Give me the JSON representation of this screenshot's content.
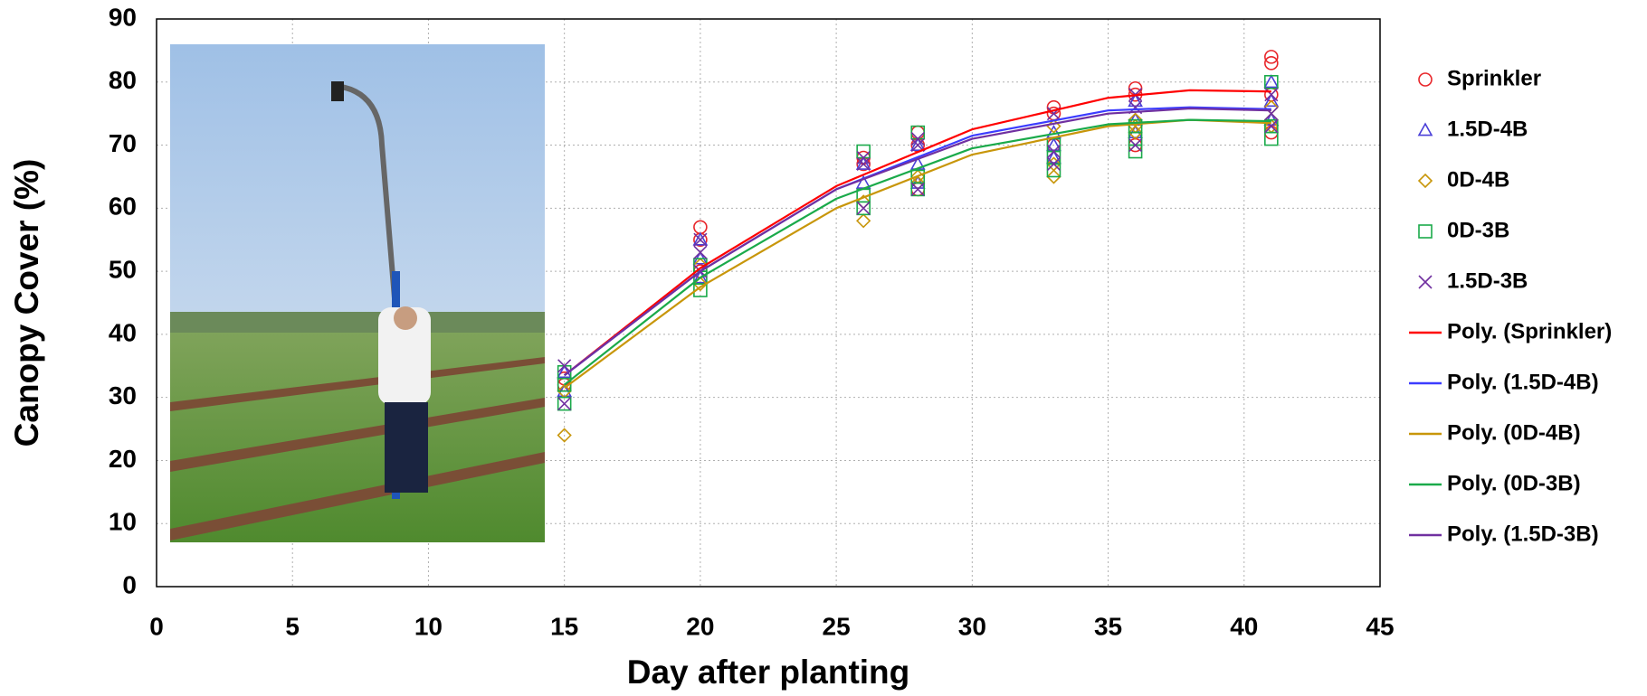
{
  "chart_data": {
    "type": "scatter",
    "xlabel": "Day after planting",
    "ylabel": "Canopy Cover (%)",
    "xlim": [
      0,
      45
    ],
    "ylim": [
      0,
      90
    ],
    "xticks": [
      0,
      5,
      10,
      15,
      20,
      25,
      30,
      35,
      40,
      45
    ],
    "yticks": [
      0,
      10,
      20,
      30,
      40,
      50,
      60,
      70,
      80,
      90
    ],
    "grid": true,
    "legend": "right",
    "series": [
      {
        "name": "Sprinkler",
        "type": "scatter",
        "marker": "circle",
        "color": "#e8262a",
        "x": [
          15,
          15,
          20,
          20,
          20,
          26,
          26,
          28,
          28,
          28,
          33,
          33,
          33,
          36,
          36,
          36,
          41,
          41,
          41,
          41
        ],
        "values": [
          33,
          32,
          57,
          55,
          50,
          68,
          67,
          72,
          70,
          63,
          76,
          75,
          70,
          79,
          78,
          70,
          84,
          83,
          78,
          72
        ]
      },
      {
        "name": "1.5D-4B",
        "type": "scatter",
        "marker": "triangle",
        "color": "#4a3fd8",
        "x": [
          15,
          15,
          20,
          20,
          20,
          26,
          26,
          28,
          28,
          28,
          33,
          33,
          33,
          36,
          36,
          36,
          41,
          41,
          41
        ],
        "values": [
          34,
          31,
          55,
          52,
          49,
          64,
          67,
          67,
          70,
          64,
          72,
          70,
          68,
          77,
          74,
          72,
          80,
          77,
          74
        ]
      },
      {
        "name": "0D-4B",
        "type": "scatter",
        "marker": "diamond",
        "color": "#c8960a",
        "x": [
          15,
          15,
          20,
          20,
          26,
          26,
          28,
          28,
          33,
          33,
          33,
          36,
          36,
          36,
          41,
          41,
          41
        ],
        "values": [
          24,
          31,
          48,
          51,
          58,
          61,
          64,
          65,
          65,
          67,
          73,
          72,
          73,
          74,
          74,
          76,
          73
        ]
      },
      {
        "name": "0D-3B",
        "type": "scatter",
        "marker": "square",
        "color": "#1aaa4a",
        "x": [
          15,
          15,
          15,
          20,
          20,
          20,
          26,
          26,
          26,
          28,
          28,
          28,
          33,
          33,
          33,
          36,
          36,
          36,
          41,
          41,
          41
        ],
        "values": [
          29,
          32,
          34,
          47,
          49,
          51,
          60,
          62,
          69,
          63,
          65,
          72,
          66,
          68,
          70,
          69,
          71,
          73,
          71,
          73,
          80
        ]
      },
      {
        "name": "1.5D-3B",
        "type": "scatter",
        "marker": "x",
        "color": "#7030a0",
        "x": [
          15,
          15,
          20,
          20,
          20,
          26,
          26,
          26,
          28,
          28,
          28,
          33,
          33,
          33,
          36,
          36,
          36,
          41,
          41,
          41
        ],
        "values": [
          29,
          35,
          50,
          53,
          55,
          60,
          67,
          68,
          63,
          70,
          71,
          67,
          69,
          75,
          70,
          76,
          78,
          73,
          75,
          78
        ]
      },
      {
        "name": "Poly. (Sprinkler)",
        "type": "line",
        "color": "#ff0000",
        "x": [
          15,
          20,
          25,
          30,
          35,
          38,
          41
        ],
        "values": [
          33.5,
          50.5,
          63.5,
          72.5,
          77.5,
          78.7,
          78.5
        ]
      },
      {
        "name": "Poly. (1.5D-4B)",
        "type": "line",
        "color": "#3c3cff",
        "x": [
          15,
          20,
          25,
          30,
          35,
          38,
          41
        ],
        "values": [
          33.5,
          50,
          63,
          71.5,
          75.5,
          76,
          75.7
        ]
      },
      {
        "name": "Poly. (0D-4B)",
        "type": "line",
        "color": "#c8960a",
        "x": [
          15,
          20,
          25,
          30,
          35,
          38,
          41
        ],
        "values": [
          31.5,
          47.5,
          60,
          68.5,
          73,
          74,
          73.5
        ]
      },
      {
        "name": "Poly. (0D-3B)",
        "type": "line",
        "color": "#1aaa4a",
        "x": [
          15,
          20,
          25,
          30,
          35,
          38,
          41
        ],
        "values": [
          32,
          49,
          61.5,
          69.5,
          73.3,
          74,
          73.8
        ]
      },
      {
        "name": "Poly. (1.5D-3B)",
        "type": "line",
        "color": "#7030a0",
        "x": [
          15,
          20,
          25,
          30,
          35,
          38,
          41
        ],
        "values": [
          33.5,
          50,
          63,
          71,
          75,
          75.8,
          75.5
        ]
      }
    ]
  }
}
